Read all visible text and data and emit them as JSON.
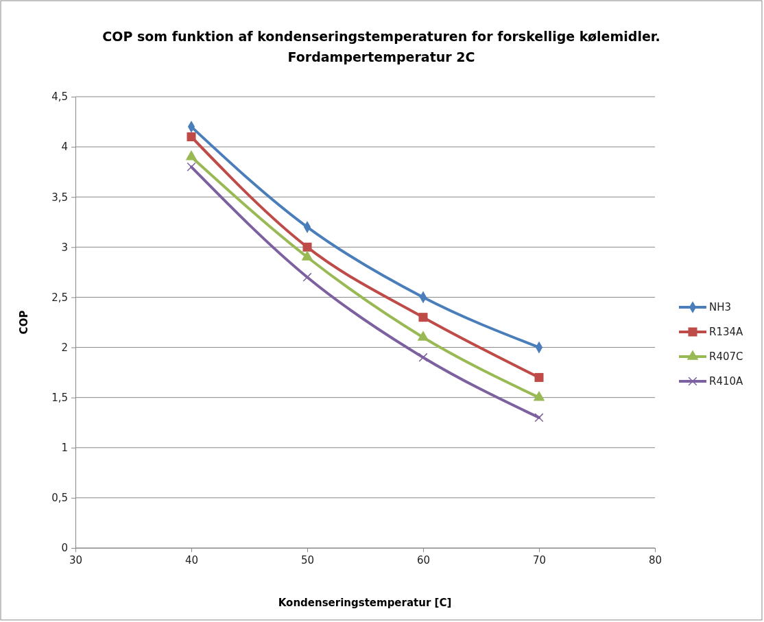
{
  "chart_data": {
    "type": "line",
    "title": "COP som funktion af kondenseringstemperaturen for forskellige kølemidler.",
    "subtitle": "Fordampertemperatur 2C",
    "xlabel": "Kondenseringstemperatur [C]",
    "ylabel": "COP",
    "x": [
      40,
      50,
      60,
      70
    ],
    "series": [
      {
        "name": "NH3",
        "color": "#4a7ebb",
        "marker": "diamond",
        "values": [
          4.2,
          3.2,
          2.5,
          2.0
        ]
      },
      {
        "name": "R134A",
        "color": "#be4b48",
        "marker": "square",
        "values": [
          4.1,
          3.0,
          2.3,
          1.7
        ]
      },
      {
        "name": "R407C",
        "color": "#98b954",
        "marker": "triangle",
        "values": [
          3.9,
          2.9,
          2.1,
          1.5
        ]
      },
      {
        "name": "R410A",
        "color": "#7d60a0",
        "marker": "cross",
        "values": [
          3.8,
          2.7,
          1.9,
          1.3
        ]
      }
    ],
    "xlim": [
      30,
      80
    ],
    "xticks": [
      30,
      40,
      50,
      60,
      70,
      80
    ],
    "ylim": [
      0,
      4.5
    ],
    "yticks": [
      0,
      {
        "value": 0.5,
        "label": "0,5"
      },
      1,
      {
        "value": 1.5,
        "label": "1,5"
      },
      2,
      {
        "value": 2.5,
        "label": "2,5"
      },
      3,
      {
        "value": 3.5,
        "label": "3,5"
      },
      4,
      {
        "value": 4.5,
        "label": "4,5"
      }
    ],
    "grid": "y",
    "legend": "right",
    "line_style": "solid"
  }
}
